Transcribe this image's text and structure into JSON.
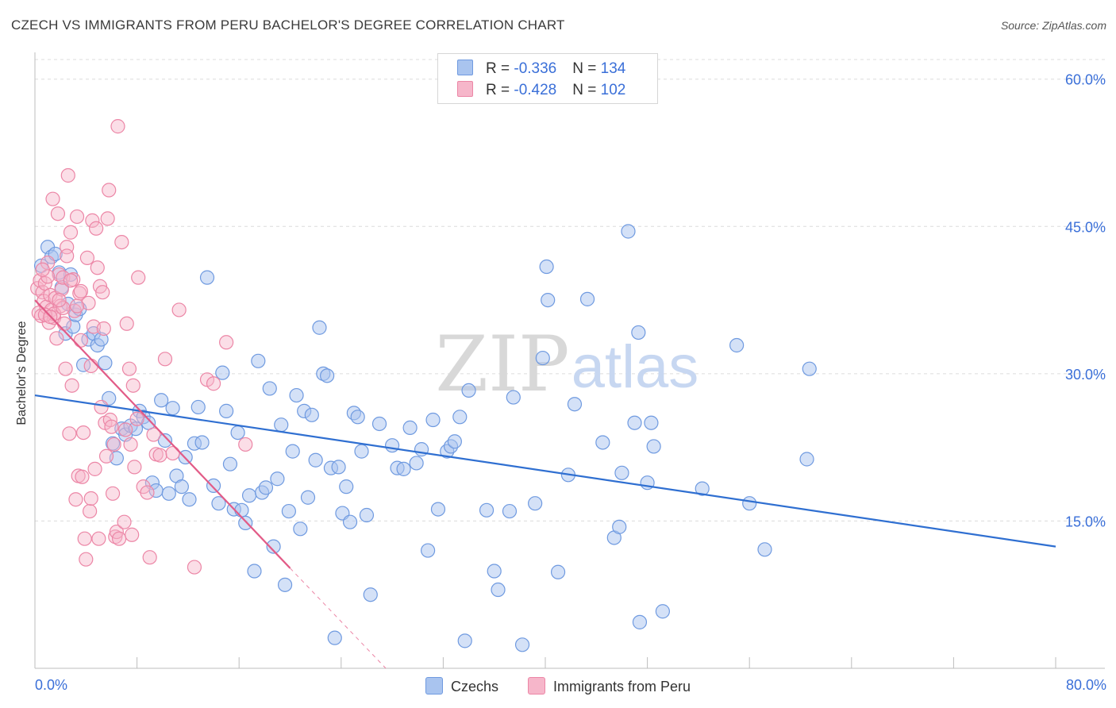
{
  "title": "CZECH VS IMMIGRANTS FROM PERU BACHELOR'S DEGREE CORRELATION CHART",
  "source": "Source: ZipAtlas.com",
  "watermark": {
    "zip": "ZIP",
    "atlas": "atlas"
  },
  "legend": {
    "rows": [
      {
        "r_label": "R = ",
        "r_value": "-0.336",
        "n_label": "N = ",
        "n_value": "134"
      },
      {
        "r_label": "R = ",
        "r_value": "-0.428",
        "n_label": "N = ",
        "n_value": "102"
      }
    ]
  },
  "colors": {
    "blue_fill": "#a9c4ef",
    "blue_stroke": "#6f9ae0",
    "blue_line": "#2f6fd1",
    "pink_fill": "#f6b6ca",
    "pink_stroke": "#ec86a6",
    "pink_line": "#e25b87",
    "tick_label": "#3a6fd8",
    "grid": "#dcdcdc"
  },
  "chart_data": {
    "type": "scatter",
    "title": "CZECH VS IMMIGRANTS FROM PERU BACHELOR'S DEGREE CORRELATION CHART",
    "xlabel": "",
    "ylabel": "Bachelor's Degree",
    "xlim": [
      0,
      80
    ],
    "ylim": [
      0,
      62
    ],
    "x_tick_labels": [
      "0.0%",
      "80.0%"
    ],
    "y_ticks": [
      15,
      30,
      45,
      60
    ],
    "y_tick_labels": [
      "15.0%",
      "30.0%",
      "45.0%",
      "60.0%"
    ],
    "grid": true,
    "legend_position": "top-center",
    "series": [
      {
        "name": "Czechs",
        "r": -0.336,
        "n": 134,
        "trend": {
          "x": [
            0,
            80
          ],
          "y": [
            27.8,
            12.4
          ]
        },
        "points": [
          {
            "x": 0.5,
            "y": 41.0
          },
          {
            "x": 1.0,
            "y": 42.9
          },
          {
            "x": 1.3,
            "y": 41.9
          },
          {
            "x": 1.6,
            "y": 42.2
          },
          {
            "x": 1.9,
            "y": 40.3
          },
          {
            "x": 2.1,
            "y": 38.8
          },
          {
            "x": 2.4,
            "y": 34.1
          },
          {
            "x": 2.6,
            "y": 37.1
          },
          {
            "x": 2.8,
            "y": 40.1
          },
          {
            "x": 3.0,
            "y": 34.8
          },
          {
            "x": 3.2,
            "y": 36.0
          },
          {
            "x": 3.5,
            "y": 36.6
          },
          {
            "x": 3.8,
            "y": 30.9
          },
          {
            "x": 4.2,
            "y": 33.5
          },
          {
            "x": 4.6,
            "y": 34.1
          },
          {
            "x": 4.9,
            "y": 32.9
          },
          {
            "x": 5.2,
            "y": 33.5
          },
          {
            "x": 5.5,
            "y": 31.1
          },
          {
            "x": 5.8,
            "y": 27.5
          },
          {
            "x": 6.1,
            "y": 22.9
          },
          {
            "x": 6.4,
            "y": 21.4
          },
          {
            "x": 6.8,
            "y": 24.4
          },
          {
            "x": 7.1,
            "y": 23.8
          },
          {
            "x": 7.5,
            "y": 24.7
          },
          {
            "x": 7.9,
            "y": 24.4
          },
          {
            "x": 8.2,
            "y": 26.2
          },
          {
            "x": 8.5,
            "y": 25.6
          },
          {
            "x": 8.9,
            "y": 25.0
          },
          {
            "x": 9.2,
            "y": 18.9
          },
          {
            "x": 9.5,
            "y": 18.1
          },
          {
            "x": 9.9,
            "y": 27.3
          },
          {
            "x": 10.2,
            "y": 23.2
          },
          {
            "x": 10.5,
            "y": 17.8
          },
          {
            "x": 10.8,
            "y": 26.5
          },
          {
            "x": 11.1,
            "y": 19.6
          },
          {
            "x": 11.5,
            "y": 18.5
          },
          {
            "x": 11.8,
            "y": 21.5
          },
          {
            "x": 12.1,
            "y": 17.2
          },
          {
            "x": 12.5,
            "y": 22.9
          },
          {
            "x": 12.8,
            "y": 26.6
          },
          {
            "x": 13.1,
            "y": 23.0
          },
          {
            "x": 13.5,
            "y": 39.8
          },
          {
            "x": 14.0,
            "y": 18.6
          },
          {
            "x": 14.4,
            "y": 16.8
          },
          {
            "x": 14.7,
            "y": 30.1
          },
          {
            "x": 15.0,
            "y": 26.2
          },
          {
            "x": 15.3,
            "y": 20.8
          },
          {
            "x": 15.6,
            "y": 16.2
          },
          {
            "x": 15.9,
            "y": 24.0
          },
          {
            "x": 16.2,
            "y": 16.1
          },
          {
            "x": 16.5,
            "y": 14.8
          },
          {
            "x": 16.8,
            "y": 17.6
          },
          {
            "x": 17.2,
            "y": 9.9
          },
          {
            "x": 17.5,
            "y": 31.3
          },
          {
            "x": 17.8,
            "y": 17.9
          },
          {
            "x": 18.1,
            "y": 18.4
          },
          {
            "x": 18.4,
            "y": 28.5
          },
          {
            "x": 18.7,
            "y": 12.4
          },
          {
            "x": 19.0,
            "y": 19.3
          },
          {
            "x": 19.3,
            "y": 24.8
          },
          {
            "x": 19.6,
            "y": 8.5
          },
          {
            "x": 19.9,
            "y": 16.0
          },
          {
            "x": 20.2,
            "y": 22.1
          },
          {
            "x": 20.5,
            "y": 27.8
          },
          {
            "x": 20.8,
            "y": 14.2
          },
          {
            "x": 21.1,
            "y": 26.2
          },
          {
            "x": 21.4,
            "y": 17.4
          },
          {
            "x": 21.7,
            "y": 25.8
          },
          {
            "x": 22.0,
            "y": 21.2
          },
          {
            "x": 22.3,
            "y": 34.7
          },
          {
            "x": 22.6,
            "y": 30.0
          },
          {
            "x": 22.9,
            "y": 29.8
          },
          {
            "x": 23.2,
            "y": 20.4
          },
          {
            "x": 23.5,
            "y": 3.1
          },
          {
            "x": 23.8,
            "y": 20.5
          },
          {
            "x": 24.1,
            "y": 15.8
          },
          {
            "x": 24.4,
            "y": 18.5
          },
          {
            "x": 24.7,
            "y": 14.9
          },
          {
            "x": 25.0,
            "y": 26.0
          },
          {
            "x": 25.3,
            "y": 25.6
          },
          {
            "x": 25.6,
            "y": 22.1
          },
          {
            "x": 26.0,
            "y": 15.6
          },
          {
            "x": 26.3,
            "y": 7.5
          },
          {
            "x": 27.0,
            "y": 24.9
          },
          {
            "x": 28.0,
            "y": 22.7
          },
          {
            "x": 28.4,
            "y": 20.4
          },
          {
            "x": 28.9,
            "y": 20.3
          },
          {
            "x": 29.4,
            "y": 24.5
          },
          {
            "x": 29.9,
            "y": 20.9
          },
          {
            "x": 30.3,
            "y": 22.3
          },
          {
            "x": 30.8,
            "y": 12.0
          },
          {
            "x": 31.2,
            "y": 25.3
          },
          {
            "x": 31.6,
            "y": 16.2
          },
          {
            "x": 32.3,
            "y": 22.1
          },
          {
            "x": 32.6,
            "y": 22.6
          },
          {
            "x": 32.9,
            "y": 23.1
          },
          {
            "x": 33.3,
            "y": 25.6
          },
          {
            "x": 33.7,
            "y": 2.8
          },
          {
            "x": 34.0,
            "y": 28.3
          },
          {
            "x": 35.4,
            "y": 16.1
          },
          {
            "x": 36.0,
            "y": 9.9
          },
          {
            "x": 36.3,
            "y": 8.0
          },
          {
            "x": 37.2,
            "y": 16.0
          },
          {
            "x": 37.5,
            "y": 27.6
          },
          {
            "x": 38.2,
            "y": 2.4
          },
          {
            "x": 39.2,
            "y": 16.8
          },
          {
            "x": 39.8,
            "y": 31.6
          },
          {
            "x": 40.1,
            "y": 40.9
          },
          {
            "x": 40.2,
            "y": 37.5
          },
          {
            "x": 41.0,
            "y": 9.8
          },
          {
            "x": 41.8,
            "y": 19.7
          },
          {
            "x": 42.3,
            "y": 26.9
          },
          {
            "x": 43.3,
            "y": 37.6
          },
          {
            "x": 44.5,
            "y": 23.0
          },
          {
            "x": 45.4,
            "y": 13.3
          },
          {
            "x": 45.8,
            "y": 14.4
          },
          {
            "x": 46.0,
            "y": 19.9
          },
          {
            "x": 46.5,
            "y": 44.5
          },
          {
            "x": 47.0,
            "y": 25.0
          },
          {
            "x": 47.3,
            "y": 34.2
          },
          {
            "x": 47.4,
            "y": 4.7
          },
          {
            "x": 48.0,
            "y": 18.9
          },
          {
            "x": 48.5,
            "y": 22.6
          },
          {
            "x": 48.3,
            "y": 25.0
          },
          {
            "x": 49.2,
            "y": 5.8
          },
          {
            "x": 52.3,
            "y": 18.3
          },
          {
            "x": 55.0,
            "y": 32.9
          },
          {
            "x": 56.0,
            "y": 16.8
          },
          {
            "x": 57.2,
            "y": 12.1
          },
          {
            "x": 60.7,
            "y": 30.5
          },
          {
            "x": 60.5,
            "y": 21.3
          }
        ]
      },
      {
        "name": "Immigrants from Peru",
        "r": -0.428,
        "n": 102,
        "trend": {
          "x": [
            0,
            20
          ],
          "y": [
            37.5,
            10.2
          ]
        },
        "trend_dashed": {
          "x": [
            20,
            27.5
          ],
          "y": [
            10.2,
            0
          ]
        },
        "points": [
          {
            "x": 0.2,
            "y": 38.7
          },
          {
            "x": 0.3,
            "y": 36.2
          },
          {
            "x": 0.4,
            "y": 39.5
          },
          {
            "x": 0.5,
            "y": 35.9
          },
          {
            "x": 0.6,
            "y": 38.3
          },
          {
            "x": 0.7,
            "y": 37.4
          },
          {
            "x": 0.8,
            "y": 39.2
          },
          {
            "x": 0.9,
            "y": 36.8
          },
          {
            "x": 1.0,
            "y": 41.3
          },
          {
            "x": 1.1,
            "y": 35.2
          },
          {
            "x": 1.2,
            "y": 38.0
          },
          {
            "x": 1.3,
            "y": 36.5
          },
          {
            "x": 1.4,
            "y": 47.8
          },
          {
            "x": 1.5,
            "y": 35.7
          },
          {
            "x": 1.6,
            "y": 37.7
          },
          {
            "x": 1.7,
            "y": 33.6
          },
          {
            "x": 1.8,
            "y": 46.3
          },
          {
            "x": 1.9,
            "y": 40.1
          },
          {
            "x": 2.0,
            "y": 36.9
          },
          {
            "x": 2.1,
            "y": 38.6
          },
          {
            "x": 2.2,
            "y": 39.8
          },
          {
            "x": 2.3,
            "y": 35.1
          },
          {
            "x": 2.4,
            "y": 30.5
          },
          {
            "x": 2.5,
            "y": 42.9
          },
          {
            "x": 2.6,
            "y": 50.2
          },
          {
            "x": 2.7,
            "y": 23.9
          },
          {
            "x": 2.8,
            "y": 44.4
          },
          {
            "x": 2.9,
            "y": 28.8
          },
          {
            "x": 3.0,
            "y": 39.6
          },
          {
            "x": 3.1,
            "y": 36.4
          },
          {
            "x": 3.2,
            "y": 17.2
          },
          {
            "x": 3.3,
            "y": 46.0
          },
          {
            "x": 3.4,
            "y": 19.6
          },
          {
            "x": 3.5,
            "y": 38.2
          },
          {
            "x": 3.6,
            "y": 33.4
          },
          {
            "x": 3.7,
            "y": 19.5
          },
          {
            "x": 3.8,
            "y": 24.0
          },
          {
            "x": 3.9,
            "y": 13.2
          },
          {
            "x": 4.0,
            "y": 11.1
          },
          {
            "x": 4.1,
            "y": 41.8
          },
          {
            "x": 4.2,
            "y": 37.2
          },
          {
            "x": 4.3,
            "y": 16.0
          },
          {
            "x": 4.4,
            "y": 17.3
          },
          {
            "x": 4.5,
            "y": 45.6
          },
          {
            "x": 4.6,
            "y": 34.8
          },
          {
            "x": 4.7,
            "y": 20.3
          },
          {
            "x": 4.8,
            "y": 44.8
          },
          {
            "x": 4.9,
            "y": 40.8
          },
          {
            "x": 5.0,
            "y": 13.2
          },
          {
            "x": 5.1,
            "y": 38.9
          },
          {
            "x": 5.2,
            "y": 26.6
          },
          {
            "x": 5.3,
            "y": 38.3
          },
          {
            "x": 5.4,
            "y": 34.6
          },
          {
            "x": 5.5,
            "y": 25.0
          },
          {
            "x": 5.6,
            "y": 21.6
          },
          {
            "x": 5.7,
            "y": 45.8
          },
          {
            "x": 5.8,
            "y": 48.7
          },
          {
            "x": 5.9,
            "y": 25.3
          },
          {
            "x": 6.0,
            "y": 24.6
          },
          {
            "x": 6.1,
            "y": 17.8
          },
          {
            "x": 6.2,
            "y": 22.8
          },
          {
            "x": 6.3,
            "y": 13.4
          },
          {
            "x": 6.4,
            "y": 13.9
          },
          {
            "x": 6.5,
            "y": 55.2
          },
          {
            "x": 6.6,
            "y": 13.2
          },
          {
            "x": 6.8,
            "y": 43.4
          },
          {
            "x": 7.0,
            "y": 14.9
          },
          {
            "x": 7.1,
            "y": 24.3
          },
          {
            "x": 7.2,
            "y": 35.1
          },
          {
            "x": 7.4,
            "y": 30.5
          },
          {
            "x": 7.5,
            "y": 22.8
          },
          {
            "x": 7.6,
            "y": 13.6
          },
          {
            "x": 7.7,
            "y": 28.8
          },
          {
            "x": 7.8,
            "y": 20.5
          },
          {
            "x": 8.0,
            "y": 25.4
          },
          {
            "x": 8.1,
            "y": 39.8
          },
          {
            "x": 8.5,
            "y": 18.5
          },
          {
            "x": 8.8,
            "y": 17.9
          },
          {
            "x": 9.0,
            "y": 11.3
          },
          {
            "x": 9.3,
            "y": 23.8
          },
          {
            "x": 9.5,
            "y": 21.8
          },
          {
            "x": 9.8,
            "y": 21.7
          },
          {
            "x": 10.2,
            "y": 31.5
          },
          {
            "x": 10.8,
            "y": 21.9
          },
          {
            "x": 11.3,
            "y": 36.5
          },
          {
            "x": 12.5,
            "y": 10.3
          },
          {
            "x": 13.5,
            "y": 29.4
          },
          {
            "x": 14.0,
            "y": 29.0
          },
          {
            "x": 15.0,
            "y": 33.2
          },
          {
            "x": 16.5,
            "y": 22.8
          },
          {
            "x": 1.0,
            "y": 39.9
          },
          {
            "x": 1.5,
            "y": 36.1
          },
          {
            "x": 2.2,
            "y": 36.7
          },
          {
            "x": 0.8,
            "y": 36.0
          },
          {
            "x": 1.9,
            "y": 37.5
          },
          {
            "x": 2.8,
            "y": 39.5
          },
          {
            "x": 3.3,
            "y": 36.9
          },
          {
            "x": 0.6,
            "y": 40.6
          },
          {
            "x": 1.2,
            "y": 35.8
          },
          {
            "x": 3.6,
            "y": 38.4
          },
          {
            "x": 2.5,
            "y": 42.0
          },
          {
            "x": 4.4,
            "y": 30.8
          }
        ]
      }
    ]
  },
  "bottom_legend": [
    {
      "label": "Czechs"
    },
    {
      "label": "Immigrants from Peru"
    }
  ]
}
